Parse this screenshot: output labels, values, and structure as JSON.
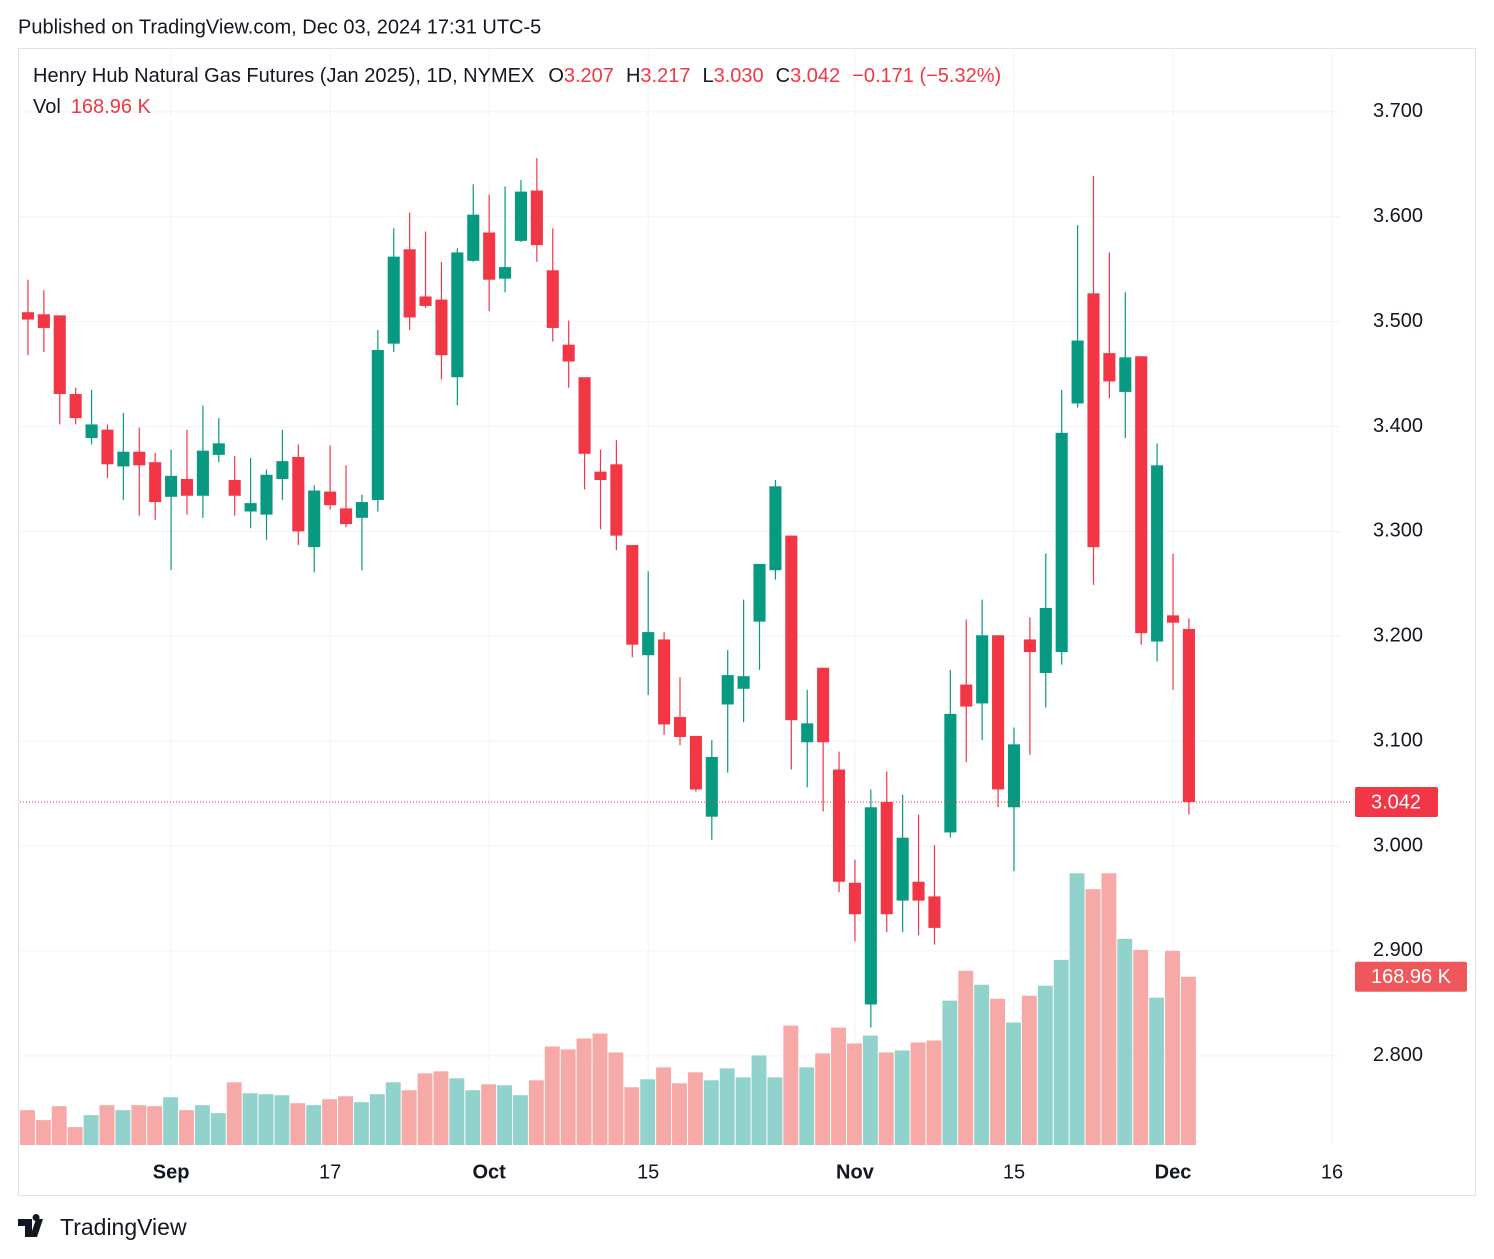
{
  "chart_data": {
    "type": "candlestick",
    "published": "Published on TradingView.com, Dec 03, 2024 17:31 UTC-5",
    "title": "Henry Hub Natural Gas Futures (Jan 2025), 1D, NYMEX",
    "legend": {
      "fields": [
        {
          "label": "O",
          "value": "3.207"
        },
        {
          "label": "H",
          "value": "3.217"
        },
        {
          "label": "L",
          "value": "3.030"
        },
        {
          "label": "C",
          "value": "3.042"
        }
      ],
      "change": "−0.171 (−5.32%)",
      "volume_label": "Vol",
      "volume_value": "168.96 K"
    },
    "brand": "TradingView",
    "open": [
      3.509,
      3.507,
      3.506,
      3.431,
      3.389,
      3.397,
      3.362,
      3.376,
      3.366,
      3.333,
      3.35,
      3.334,
      3.373,
      3.349,
      3.319,
      3.316,
      3.35,
      3.371,
      3.285,
      3.338,
      3.322,
      3.313,
      3.33,
      3.479,
      3.569,
      3.524,
      3.521,
      3.447,
      3.558,
      3.585,
      3.541,
      3.577,
      3.625,
      3.549,
      3.478,
      3.447,
      3.357,
      3.364,
      3.287,
      3.182,
      3.197,
      3.123,
      3.105,
      3.028,
      3.135,
      3.15,
      3.214,
      3.263,
      3.296,
      3.099,
      3.17,
      3.073,
      2.965,
      2.849,
      3.042,
      2.948,
      2.966,
      2.952,
      3.013,
      3.154,
      3.136,
      3.201,
      3.037,
      3.197,
      3.165,
      3.185,
      3.422,
      3.527,
      3.47,
      3.433,
      3.467,
      3.195,
      3.22,
      3.207
    ],
    "high": [
      3.54,
      3.53,
      3.506,
      3.437,
      3.435,
      3.402,
      3.413,
      3.399,
      3.375,
      3.378,
      3.397,
      3.42,
      3.408,
      3.372,
      3.37,
      3.359,
      3.397,
      3.383,
      3.344,
      3.382,
      3.363,
      3.335,
      3.492,
      3.589,
      3.604,
      3.586,
      3.557,
      3.57,
      3.631,
      3.621,
      3.629,
      3.635,
      3.656,
      3.589,
      3.501,
      3.447,
      3.378,
      3.387,
      3.287,
      3.262,
      3.204,
      3.161,
      3.105,
      3.101,
      3.187,
      3.235,
      3.269,
      3.349,
      3.296,
      3.149,
      3.17,
      3.09,
      2.987,
      3.054,
      3.071,
      3.049,
      3.03,
      3.001,
      3.168,
      3.216,
      3.235,
      3.201,
      3.113,
      3.218,
      3.279,
      3.435,
      3.592,
      3.639,
      3.566,
      3.528,
      3.467,
      3.384,
      3.279,
      3.217
    ],
    "low": [
      3.468,
      3.471,
      3.402,
      3.402,
      3.383,
      3.351,
      3.33,
      3.315,
      3.311,
      3.263,
      3.316,
      3.313,
      3.366,
      3.315,
      3.303,
      3.292,
      3.33,
      3.287,
      3.261,
      3.321,
      3.304,
      3.263,
      3.319,
      3.471,
      3.492,
      3.513,
      3.445,
      3.42,
      3.557,
      3.51,
      3.528,
      3.576,
      3.557,
      3.481,
      3.437,
      3.34,
      3.302,
      3.282,
      3.18,
      3.144,
      3.106,
      3.096,
      3.052,
      3.006,
      3.07,
      3.118,
      3.168,
      3.254,
      3.073,
      3.056,
      3.033,
      2.956,
      2.909,
      2.827,
      2.918,
      2.918,
      2.915,
      2.906,
      3.008,
      3.08,
      3.101,
      3.037,
      2.976,
      3.087,
      3.132,
      3.173,
      3.418,
      3.249,
      3.427,
      3.389,
      3.192,
      3.176,
      3.149,
      3.03
    ],
    "close": [
      3.502,
      3.494,
      3.431,
      3.408,
      3.402,
      3.364,
      3.376,
      3.363,
      3.328,
      3.353,
      3.334,
      3.377,
      3.384,
      3.334,
      3.327,
      3.354,
      3.367,
      3.3,
      3.339,
      3.325,
      3.307,
      3.328,
      3.473,
      3.562,
      3.504,
      3.515,
      3.468,
      3.566,
      3.602,
      3.54,
      3.552,
      3.624,
      3.573,
      3.494,
      3.462,
      3.374,
      3.349,
      3.296,
      3.192,
      3.204,
      3.116,
      3.104,
      3.054,
      3.085,
      3.163,
      3.162,
      3.269,
      3.343,
      3.12,
      3.117,
      3.099,
      2.966,
      2.935,
      3.037,
      2.935,
      3.008,
      2.948,
      2.922,
      3.126,
      3.133,
      3.201,
      3.054,
      3.097,
      3.185,
      3.227,
      3.394,
      3.482,
      3.285,
      3.443,
      3.466,
      3.203,
      3.363,
      3.213,
      3.042
    ],
    "volume": [
      35,
      25,
      39,
      18,
      30,
      40,
      35,
      40,
      39,
      48,
      35,
      40,
      32,
      63,
      52,
      51,
      50,
      42,
      40,
      46,
      49,
      43,
      51,
      63,
      55,
      72,
      74,
      67,
      55,
      61,
      60,
      50,
      65,
      99,
      96,
      107,
      112,
      93,
      58,
      66,
      78,
      62,
      73,
      65,
      77,
      68,
      90,
      68,
      120,
      78,
      92,
      118,
      102,
      110,
      93,
      95,
      103,
      105,
      145,
      175,
      161,
      147,
      123,
      150,
      160,
      186,
      273,
      257,
      273,
      207,
      196,
      148,
      195,
      168.96
    ],
    "up_color": "#089981",
    "down_color": "#f23645",
    "volume_up_color": "#92d2cc",
    "volume_down_color": "#f7a9a7",
    "xlim": [
      -0.5,
      82.5
    ],
    "xticks": [
      {
        "value": 9,
        "label": "Sep"
      },
      {
        "value": 19,
        "label": "17"
      },
      {
        "value": 29,
        "label": "Oct"
      },
      {
        "value": 39,
        "label": "15"
      },
      {
        "value": 52,
        "label": "Nov"
      },
      {
        "value": 62,
        "label": "15"
      },
      {
        "value": 72,
        "label": "Dec"
      },
      {
        "value": 82,
        "label": "16"
      }
    ],
    "ylim": [
      2.715,
      3.759
    ],
    "yticks": [
      {
        "value": 2.8,
        "label": "2.800"
      },
      {
        "value": 2.9,
        "label": "2.900"
      },
      {
        "value": 3.0,
        "label": "3.000"
      },
      {
        "value": 3.1,
        "label": "3.100"
      },
      {
        "value": 3.2,
        "label": "3.200"
      },
      {
        "value": 3.3,
        "label": "3.300"
      },
      {
        "value": 3.4,
        "label": "3.400"
      },
      {
        "value": 3.5,
        "label": "3.500"
      },
      {
        "value": 3.6,
        "label": "3.600"
      },
      {
        "value": 3.7,
        "label": "3.700"
      }
    ],
    "volume_ylim": [
      0,
      1100
    ],
    "grid": true
  }
}
